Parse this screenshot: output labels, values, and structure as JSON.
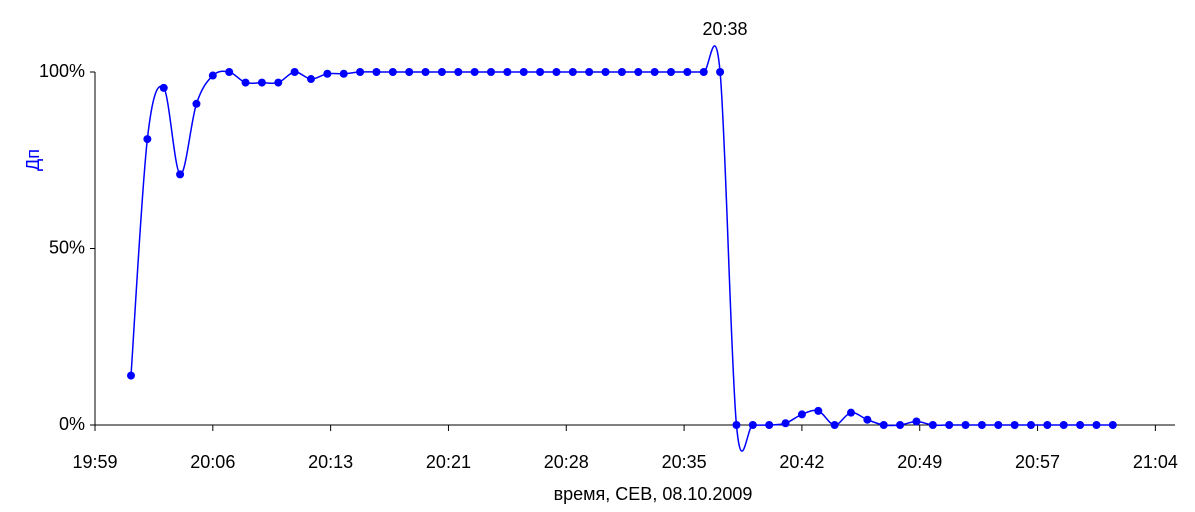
{
  "chart_data": {
    "type": "line",
    "annotation": "20:38",
    "x_label": "время, СЕВ, 08.10.2009",
    "y_label": "Дп",
    "xlim": [
      1198.8,
      1264.8
    ],
    "xticks": [
      {
        "value": 1198.8,
        "label": "19:59"
      },
      {
        "value": 1206.0,
        "label": "20:06"
      },
      {
        "value": 1213.2,
        "label": "20:13"
      },
      {
        "value": 1220.4,
        "label": "20:21"
      },
      {
        "value": 1227.6,
        "label": "20:28"
      },
      {
        "value": 1234.8,
        "label": "20:35"
      },
      {
        "value": 1242.0,
        "label": "20:42"
      },
      {
        "value": 1249.2,
        "label": "20:49"
      },
      {
        "value": 1256.4,
        "label": "20:57"
      },
      {
        "value": 1263.6,
        "label": "21:04"
      }
    ],
    "ylim": [
      0,
      100
    ],
    "yticks": [
      {
        "value": 0,
        "label": "0%"
      },
      {
        "value": 50,
        "label": "50%"
      },
      {
        "value": 100,
        "label": "100%"
      }
    ],
    "grid": false,
    "smooth": true,
    "series": [
      {
        "name": "Дп",
        "color": "#0000ff",
        "x": [
          1201,
          1202,
          1203,
          1204,
          1205,
          1206,
          1207,
          1208,
          1209,
          1210,
          1211,
          1212,
          1213,
          1214,
          1215,
          1216,
          1217,
          1218,
          1219,
          1220,
          1221,
          1222,
          1223,
          1224,
          1225,
          1226,
          1227,
          1228,
          1229,
          1230,
          1231,
          1232,
          1233,
          1234,
          1235,
          1236,
          1237,
          1238,
          1239,
          1240,
          1241,
          1242,
          1243,
          1244,
          1245,
          1246,
          1247,
          1248,
          1249,
          1250,
          1251,
          1252,
          1253,
          1254,
          1255,
          1256,
          1257,
          1258,
          1259,
          1260,
          1261
        ],
        "values": [
          14,
          81,
          95.5,
          71,
          91,
          99,
          100,
          97,
          97,
          97,
          100,
          98,
          99.5,
          99.5,
          100,
          100,
          100,
          100,
          100,
          100,
          100,
          100,
          100,
          100,
          100,
          100,
          100,
          100,
          100,
          100,
          100,
          100,
          100,
          100,
          100,
          100,
          100,
          0,
          0,
          0,
          0.5,
          3,
          4,
          0,
          3.5,
          1.5,
          0,
          0,
          1,
          0,
          0,
          0,
          0,
          0,
          0,
          0,
          0,
          0,
          0,
          0,
          0
        ]
      }
    ]
  }
}
